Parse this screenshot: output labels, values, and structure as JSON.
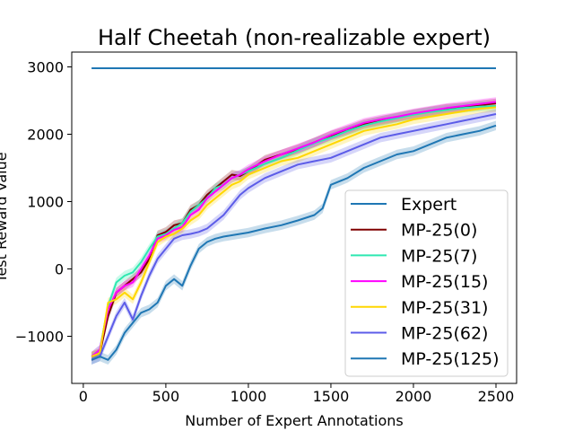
{
  "chart_data": {
    "type": "line",
    "title": "Half Cheetah (non-realizable expert)",
    "xlabel": "Number of Expert Annotations",
    "ylabel": "Test Reward Value",
    "xlim": [
      -70,
      2625
    ],
    "ylim": [
      -1700,
      3220
    ],
    "xticks": [
      0,
      500,
      1000,
      1500,
      2000,
      2500
    ],
    "yticks": [
      -1000,
      0,
      1000,
      2000,
      3000
    ],
    "xtick_labels": [
      "0",
      "500",
      "1000",
      "1500",
      "2000",
      "2500"
    ],
    "ytick_labels": [
      "−1000",
      "0",
      "1000",
      "2000",
      "3000"
    ],
    "legend_position": "lower-right",
    "series": [
      {
        "name": "Expert",
        "color": "#1f77b4",
        "band": false,
        "x": [
          50,
          2500
        ],
        "y": [
          2980,
          2980
        ]
      },
      {
        "name": "MP-25(0)",
        "color": "#800000",
        "band": true,
        "x": [
          50,
          100,
          150,
          200,
          250,
          300,
          350,
          400,
          450,
          500,
          550,
          600,
          650,
          700,
          750,
          800,
          850,
          900,
          950,
          1000,
          1100,
          1200,
          1300,
          1400,
          1500,
          1600,
          1700,
          1800,
          1900,
          2000,
          2100,
          2200,
          2300,
          2400,
          2500
        ],
        "y": [
          -1300,
          -1250,
          -700,
          -350,
          -250,
          -150,
          -50,
          150,
          500,
          550,
          650,
          680,
          880,
          950,
          1100,
          1200,
          1300,
          1400,
          1380,
          1450,
          1620,
          1700,
          1780,
          1880,
          1980,
          2060,
          2150,
          2200,
          2250,
          2300,
          2340,
          2380,
          2400,
          2430,
          2460
        ]
      },
      {
        "name": "MP-25(7)",
        "color": "#2ee8b0",
        "band": true,
        "x": [
          50,
          100,
          150,
          200,
          250,
          300,
          350,
          400,
          450,
          500,
          550,
          600,
          650,
          700,
          750,
          800,
          850,
          900,
          950,
          1000,
          1100,
          1200,
          1300,
          1400,
          1500,
          1600,
          1700,
          1800,
          1900,
          2000,
          2100,
          2200,
          2300,
          2400,
          2500
        ],
        "y": [
          -1300,
          -1200,
          -550,
          -200,
          -100,
          -50,
          100,
          300,
          480,
          520,
          600,
          680,
          850,
          950,
          1050,
          1200,
          1250,
          1350,
          1400,
          1450,
          1560,
          1650,
          1760,
          1870,
          1950,
          2050,
          2130,
          2190,
          2240,
          2290,
          2330,
          2360,
          2390,
          2410,
          2420
        ]
      },
      {
        "name": "MP-25(15)",
        "color": "#ff00ff",
        "band": true,
        "x": [
          50,
          100,
          150,
          200,
          250,
          300,
          350,
          400,
          450,
          500,
          550,
          600,
          650,
          700,
          750,
          800,
          850,
          900,
          950,
          1000,
          1100,
          1200,
          1300,
          1400,
          1500,
          1600,
          1700,
          1800,
          1900,
          2000,
          2100,
          2200,
          2300,
          2400,
          2500
        ],
        "y": [
          -1300,
          -1200,
          -600,
          -350,
          -250,
          -200,
          0,
          200,
          450,
          500,
          580,
          620,
          800,
          880,
          1050,
          1150,
          1250,
          1350,
          1400,
          1480,
          1600,
          1700,
          1790,
          1880,
          1990,
          2080,
          2170,
          2220,
          2260,
          2310,
          2350,
          2390,
          2420,
          2450,
          2480
        ]
      },
      {
        "name": "MP-25(31)",
        "color": "#ffd700",
        "band": true,
        "x": [
          50,
          100,
          150,
          200,
          250,
          300,
          350,
          400,
          450,
          500,
          550,
          600,
          650,
          700,
          750,
          800,
          850,
          900,
          950,
          1000,
          1100,
          1200,
          1300,
          1400,
          1500,
          1600,
          1700,
          1800,
          1900,
          2000,
          2100,
          2200,
          2300,
          2400,
          2500
        ],
        "y": [
          -1300,
          -1250,
          -500,
          -450,
          -350,
          -450,
          -200,
          100,
          400,
          480,
          520,
          600,
          720,
          800,
          950,
          1050,
          1150,
          1250,
          1300,
          1400,
          1500,
          1600,
          1650,
          1750,
          1850,
          1950,
          2050,
          2100,
          2150,
          2220,
          2260,
          2300,
          2340,
          2380,
          2400
        ]
      },
      {
        "name": "MP-25(62)",
        "color": "#5c5ce8",
        "band": true,
        "x": [
          50,
          100,
          150,
          200,
          250,
          300,
          350,
          400,
          450,
          500,
          550,
          600,
          650,
          700,
          750,
          800,
          850,
          900,
          950,
          1000,
          1100,
          1200,
          1300,
          1400,
          1500,
          1600,
          1700,
          1800,
          1900,
          2000,
          2100,
          2200,
          2300,
          2400,
          2500
        ],
        "y": [
          -1350,
          -1300,
          -1000,
          -700,
          -500,
          -750,
          -400,
          -100,
          150,
          300,
          450,
          500,
          520,
          550,
          600,
          700,
          800,
          950,
          1100,
          1200,
          1350,
          1450,
          1550,
          1600,
          1650,
          1750,
          1850,
          1950,
          2000,
          2050,
          2100,
          2150,
          2200,
          2250,
          2300
        ]
      },
      {
        "name": "MP-25(125)",
        "color": "#1f77b4",
        "band": true,
        "x": [
          50,
          100,
          150,
          200,
          250,
          300,
          350,
          400,
          450,
          500,
          550,
          600,
          650,
          700,
          750,
          800,
          850,
          900,
          950,
          1000,
          1100,
          1200,
          1300,
          1400,
          1450,
          1500,
          1600,
          1700,
          1800,
          1900,
          2000,
          2100,
          2200,
          2300,
          2400,
          2500
        ],
        "y": [
          -1350,
          -1300,
          -1350,
          -1200,
          -950,
          -800,
          -650,
          -600,
          -500,
          -250,
          -150,
          -250,
          50,
          300,
          400,
          450,
          480,
          500,
          520,
          540,
          600,
          650,
          720,
          800,
          900,
          1250,
          1350,
          1500,
          1600,
          1700,
          1750,
          1850,
          1950,
          2000,
          2050,
          2130
        ]
      }
    ]
  }
}
